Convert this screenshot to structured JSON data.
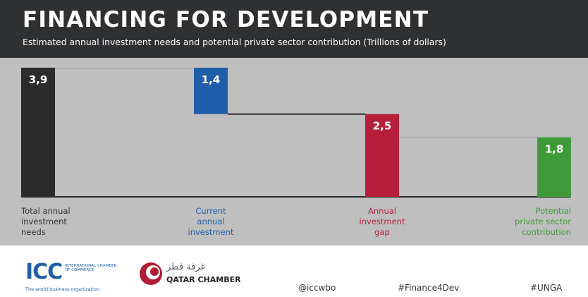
{
  "header": {
    "title": "FINANCING FOR DEVELOPMENT",
    "subtitle": "Estimated annual investment needs and potential private sector contribution (Trillions of dollars)"
  },
  "chart_data": {
    "type": "bar",
    "categories": [
      "Total annual investment needs",
      "Current annual investment",
      "Annual investment gap",
      "Potential private sector contribution"
    ],
    "values": [
      3.9,
      1.4,
      2.5,
      1.8
    ],
    "data_labels": [
      "3,9",
      "1,4",
      "2,5",
      "1,8"
    ],
    "category_labels": [
      [
        "Total annual",
        "investment",
        "needs"
      ],
      [
        "Current",
        "annual",
        "investment"
      ],
      [
        "Annual",
        "investment",
        "gap"
      ],
      [
        "Potential",
        "private sector",
        "contribution"
      ]
    ],
    "colors": [
      "#2b2b2b",
      "#1f5ea8",
      "#b51f3a",
      "#3f9b3a"
    ],
    "label_colors": [
      "#333333",
      "#1f5ea8",
      "#b51f3a",
      "#3f9b3a"
    ],
    "label_align": [
      "left",
      "center",
      "center",
      "right"
    ],
    "ylim": [
      0,
      3.9
    ],
    "grid": false,
    "legend": "none"
  },
  "footer": {
    "icc_mark": "ICC",
    "icc_text": "INTERNATIONAL CHAMBER OF COMMERCE",
    "icc_tagline": "The world business organization",
    "qc_arabic": "غرفة قطر",
    "qc_name": "QATAR CHAMBER",
    "handles": [
      "@iccwbo",
      "#Finance4Dev",
      "#UNGA"
    ]
  },
  "colors": {
    "header_bg": "#2f3032",
    "panel_bg": "#bfbfbf",
    "icc_blue": "#1f5ea8",
    "qc_red": "#b01c33"
  }
}
